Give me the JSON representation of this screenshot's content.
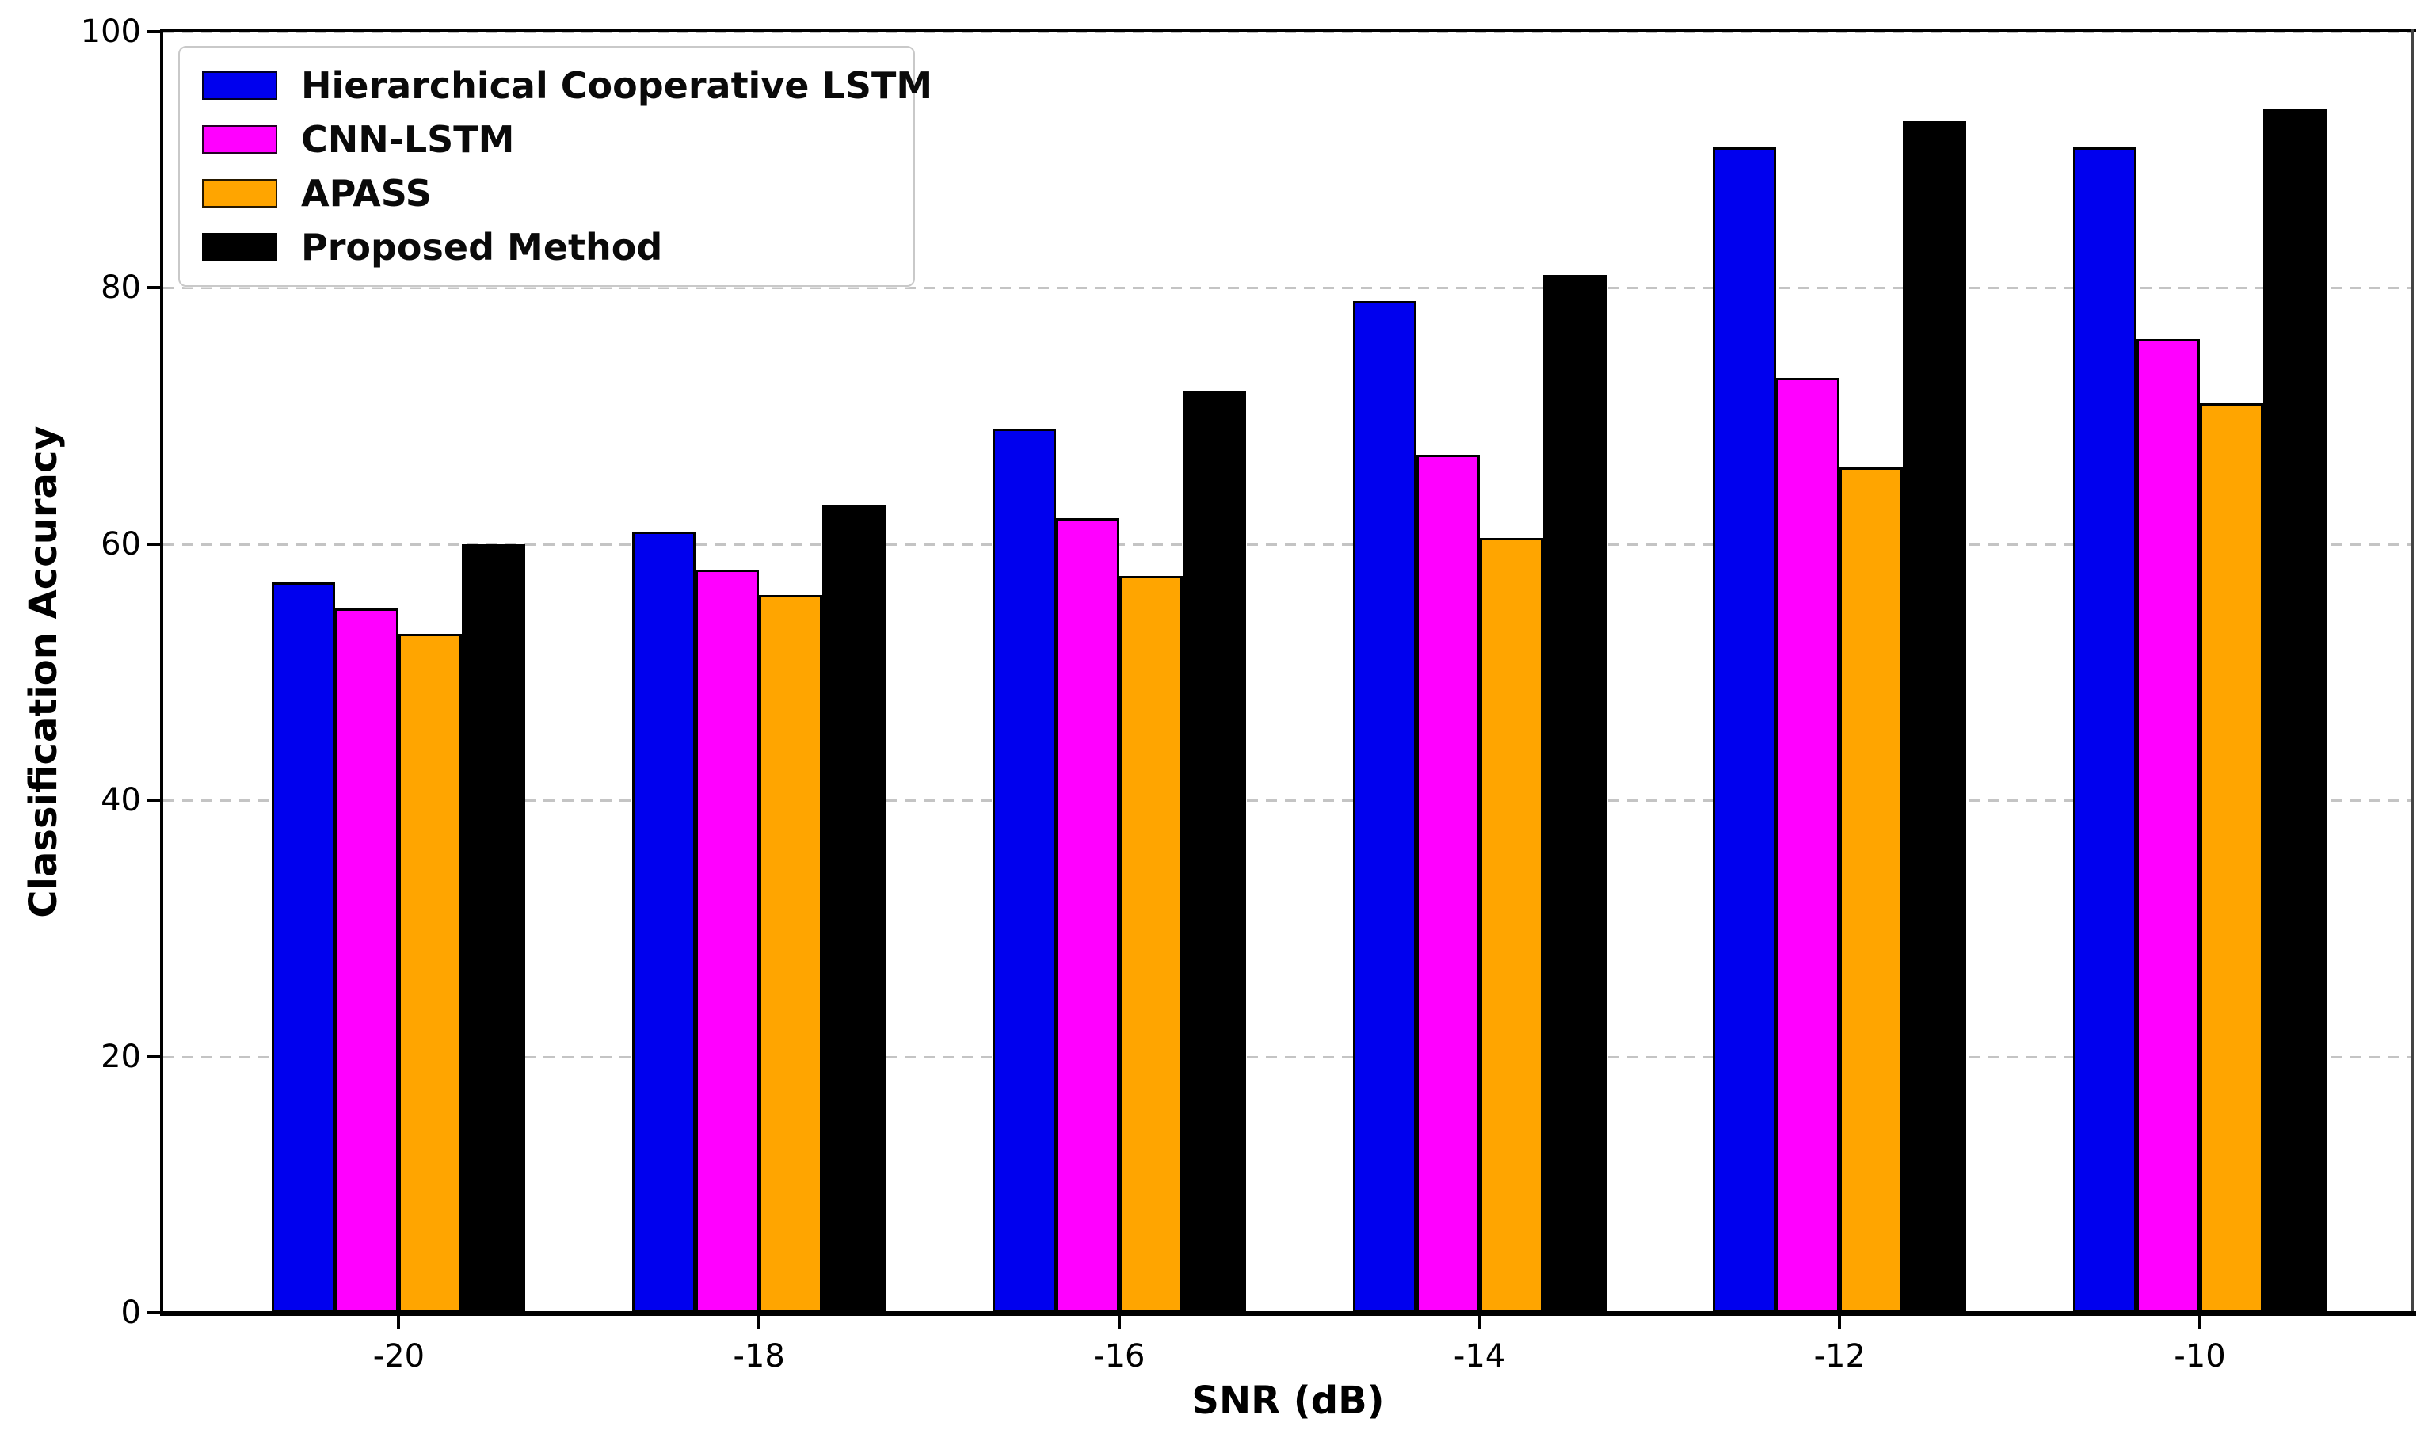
{
  "chart_data": {
    "type": "bar",
    "title": "",
    "xlabel": "SNR (dB)",
    "ylabel": "Classification Accuracy",
    "categories": [
      "-20",
      "-18",
      "-16",
      "-14",
      "-12",
      "-10"
    ],
    "series": [
      {
        "name": "Hierarchical Cooperative LSTM",
        "color": "#0000ee",
        "values": [
          57,
          61,
          69,
          79,
          91,
          91
        ]
      },
      {
        "name": "CNN-LSTM",
        "color": "#ff00ff",
        "values": [
          55,
          58,
          62,
          67,
          73,
          76
        ]
      },
      {
        "name": "APASS",
        "color": "#ffa500",
        "values": [
          53,
          56,
          57.5,
          60.5,
          66,
          71
        ]
      },
      {
        "name": "Proposed Method",
        "color": "#000000",
        "values": [
          60,
          63,
          72,
          81,
          93,
          94
        ]
      }
    ],
    "ylim": [
      0,
      100
    ],
    "yticks": [
      0,
      20,
      40,
      60,
      80,
      100
    ],
    "grid": {
      "axis": "y",
      "style": "dashed",
      "color": "#c4c4c4"
    },
    "legend": {
      "position": "upper left"
    },
    "bar_edge_color": "#000000"
  }
}
